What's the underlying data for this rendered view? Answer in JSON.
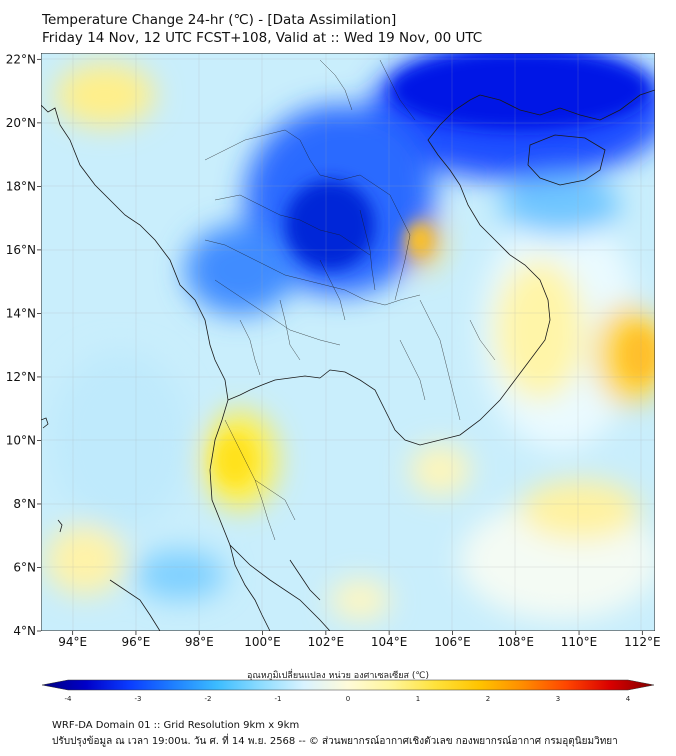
{
  "title": {
    "line1": "Temperature Change 24-hr (℃) - [Data Assimilation]",
    "line2": "Friday 14 Nov, 12 UTC FCST+108, Valid at :: Wed 19 Nov, 00 UTC"
  },
  "map": {
    "lat_ticks": [
      "22°N",
      "20°N",
      "18°N",
      "16°N",
      "14°N",
      "12°N",
      "10°N",
      "8°N",
      "6°N",
      "4°N"
    ],
    "lon_ticks": [
      "94°E",
      "96°E",
      "98°E",
      "100°E",
      "102°E",
      "104°E",
      "106°E",
      "108°E",
      "110°E",
      "112°E"
    ],
    "lat_range": [
      4,
      22.2
    ],
    "lon_range": [
      93,
      112.4
    ]
  },
  "colorbar": {
    "title": "อุณหภูมิเปลี่ยนแปลง หน่วย องศาเซลเซียส (℃)",
    "min": -4,
    "max": 4,
    "ticks": [
      "-4",
      "-3",
      "-2",
      "-1",
      "0",
      "1",
      "2",
      "3",
      "4"
    ],
    "colors": [
      "#00007f",
      "#0000c8",
      "#0a3cff",
      "#1e7fff",
      "#3cbcff",
      "#8ddcff",
      "#d9f3ff",
      "#fffbd9",
      "#fff59a",
      "#ffe23b",
      "#ffc400",
      "#ff8c00",
      "#ff4500",
      "#d90000",
      "#7f0000"
    ]
  },
  "footer": {
    "line1": "WRF-DA Domain 01 :: Grid Resolution 9km x 9km",
    "line2": "ปรับปรุงข้อมูล ณ เวลา 19:00น. วัน ศ. ที่ 14 พ.ย. 2568 -- © ส่วนพยากรณ์อากาศเชิงตัวเลข กองพยากรณ์อากาศ กรมอุตุนิยมวิทยา"
  }
}
